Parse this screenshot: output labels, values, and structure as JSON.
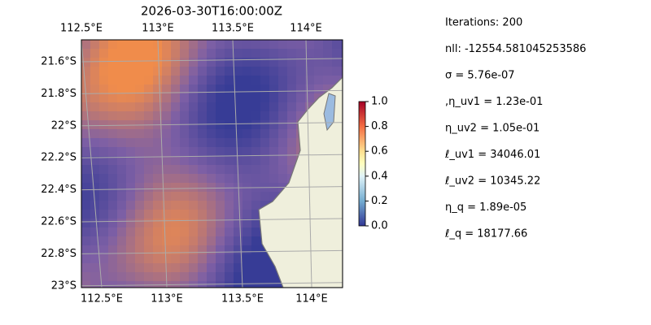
{
  "title": "2026-03-30T16:00:00Z",
  "map": {
    "lon_labels_top": [
      "112.5°E",
      "113°E",
      "113.5°E",
      "114°E"
    ],
    "lon_labels_bottom": [
      "112.5°E",
      "113°E",
      "113.5°E",
      "114°E"
    ],
    "lat_labels": [
      "21.6°S",
      "21.8°S",
      "22°S",
      "22.2°S",
      "22.4°S",
      "22.6°S",
      "22.8°S",
      "23°S"
    ]
  },
  "colorbar": {
    "lim": [
      0,
      1
    ],
    "ticks": [
      {
        "value": 0,
        "label": "0.0"
      },
      {
        "value": 0.2,
        "label": "0.2"
      },
      {
        "value": 0.4,
        "label": "0.4"
      },
      {
        "value": 0.6,
        "label": "0.6"
      },
      {
        "value": 0.8,
        "label": "0.8"
      },
      {
        "value": 1,
        "label": "1.0"
      }
    ]
  },
  "params": [
    "Iterations: 200",
    "nll: -12554.581045253586",
    "σ = 5.76e-07",
    ",η_uv1 = 1.23e-01",
    "η_uv2 = 1.05e-01",
    "ℓ_uv1 = 34046.01",
    "ℓ_uv2 = 10345.22",
    "η_q = 1.89e-05",
    "ℓ_q = 18177.66"
  ]
}
